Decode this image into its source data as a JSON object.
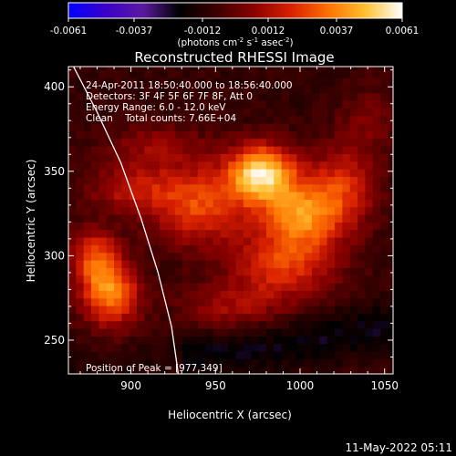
{
  "chart_data": {
    "type": "heatmap",
    "title": "Reconstructed RHESSI Image",
    "xlabel": "Heliocentric X (arcsec)",
    "ylabel": "Heliocentric Y (arcsec)",
    "xlim": [
      863,
      1055
    ],
    "ylim": [
      230,
      412
    ],
    "xticks": [
      900,
      950,
      1000,
      1050
    ],
    "yticks": [
      250,
      300,
      350,
      400
    ],
    "colorbar": {
      "range": [
        -0.0061,
        0.0061
      ],
      "ticks": [
        "-0.0061",
        "-0.0037",
        "-0.0012",
        "0.0012",
        "0.0037",
        "0.0061"
      ],
      "unit_label": "(photons cm",
      "unit_sup1": "-2",
      "unit_mid": " s",
      "unit_sup2": "-1",
      "unit_mid2": " asec",
      "unit_sup3": "-2",
      "unit_end": ")",
      "colors": [
        "#0000ff",
        "#3a00c8",
        "#5a1aa0",
        "#000000",
        "#3c0000",
        "#8a0000",
        "#d82000",
        "#ff7000",
        "#ffc030",
        "#ffffff"
      ]
    },
    "info_lines": [
      "24-Apr-2011 18:50:40.000 to 18:56:40.000",
      "Detectors: 3F 4F 5F 6F 7F 8F, Att 0",
      "Energy Range: 6.0 - 12.0 keV",
      "Clean    Total counts: 7.66E+04"
    ],
    "peak_label": "Position of Peak = [977,349]",
    "peak": [
      977,
      349
    ],
    "sources": [
      {
        "x": 977,
        "y": 349,
        "value": 0.0061,
        "sx": 14,
        "sy": 12
      },
      {
        "x": 1000,
        "y": 325,
        "value": 0.0042,
        "sx": 16,
        "sy": 14
      },
      {
        "x": 940,
        "y": 330,
        "value": 0.0035,
        "sx": 20,
        "sy": 16
      },
      {
        "x": 990,
        "y": 295,
        "value": 0.0032,
        "sx": 22,
        "sy": 14
      },
      {
        "x": 1025,
        "y": 340,
        "value": 0.0028,
        "sx": 14,
        "sy": 18
      },
      {
        "x": 888,
        "y": 278,
        "value": 0.0045,
        "sx": 12,
        "sy": 14
      },
      {
        "x": 878,
        "y": 300,
        "value": 0.003,
        "sx": 10,
        "sy": 12
      },
      {
        "x": 900,
        "y": 340,
        "value": 0.0022,
        "sx": 18,
        "sy": 10
      },
      {
        "x": 915,
        "y": 365,
        "value": 0.0016,
        "sx": 22,
        "sy": 10
      },
      {
        "x": 960,
        "y": 270,
        "value": 0.0018,
        "sx": 22,
        "sy": 10
      },
      {
        "x": 1040,
        "y": 380,
        "value": 0.0012,
        "sx": 12,
        "sy": 14
      }
    ],
    "limb_curve": [
      [
        866,
        412
      ],
      [
        880,
        385
      ],
      [
        894,
        355
      ],
      [
        906,
        322
      ],
      [
        916,
        290
      ],
      [
        924,
        258
      ],
      [
        928,
        230
      ]
    ]
  },
  "footer": {
    "timestamp": "11-May-2022 05:11"
  }
}
